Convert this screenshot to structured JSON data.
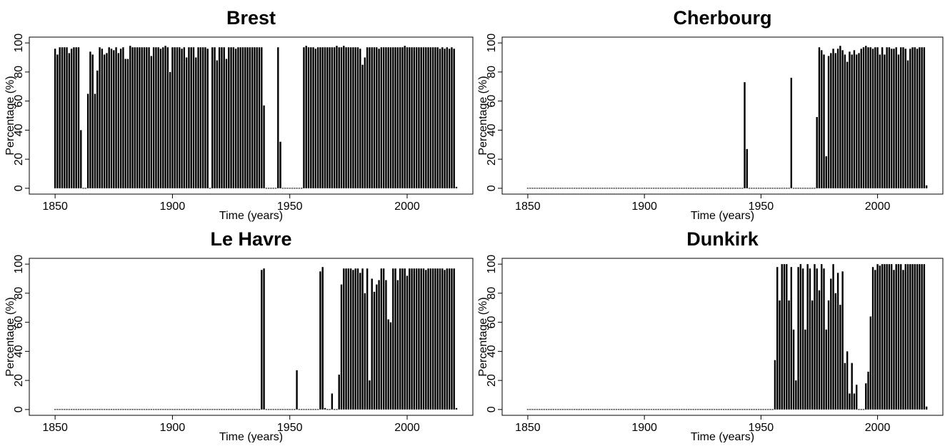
{
  "chart_data": [
    {
      "type": "bar",
      "title": "Brest",
      "xlabel": "Time (years)",
      "ylabel": "Percentage (%)",
      "color": "#000000",
      "xlim": [
        1839,
        2028
      ],
      "ylim": [
        -4,
        104
      ],
      "xticks": [
        1850,
        1900,
        1950,
        2000
      ],
      "yticks": [
        0,
        20,
        40,
        60,
        80,
        100
      ],
      "x": [
        1850,
        1851,
        1852,
        1853,
        1854,
        1855,
        1856,
        1857,
        1858,
        1859,
        1860,
        1861,
        1862,
        1863,
        1864,
        1865,
        1866,
        1867,
        1868,
        1869,
        1870,
        1871,
        1872,
        1873,
        1874,
        1875,
        1876,
        1877,
        1878,
        1879,
        1880,
        1881,
        1882,
        1883,
        1884,
        1885,
        1886,
        1887,
        1888,
        1889,
        1890,
        1891,
        1892,
        1893,
        1894,
        1895,
        1896,
        1897,
        1898,
        1899,
        1900,
        1901,
        1902,
        1903,
        1904,
        1905,
        1906,
        1907,
        1908,
        1909,
        1910,
        1911,
        1912,
        1913,
        1914,
        1915,
        1916,
        1917,
        1918,
        1919,
        1920,
        1921,
        1922,
        1923,
        1924,
        1925,
        1926,
        1927,
        1928,
        1929,
        1930,
        1931,
        1932,
        1933,
        1934,
        1935,
        1936,
        1937,
        1938,
        1939,
        1940,
        1941,
        1942,
        1943,
        1944,
        1945,
        1946,
        1947,
        1948,
        1949,
        1950,
        1951,
        1952,
        1953,
        1954,
        1955,
        1956,
        1957,
        1958,
        1959,
        1960,
        1961,
        1962,
        1963,
        1964,
        1965,
        1966,
        1967,
        1968,
        1969,
        1970,
        1971,
        1972,
        1973,
        1974,
        1975,
        1976,
        1977,
        1978,
        1979,
        1980,
        1981,
        1982,
        1983,
        1984,
        1985,
        1986,
        1987,
        1988,
        1989,
        1990,
        1991,
        1992,
        1993,
        1994,
        1995,
        1996,
        1997,
        1998,
        1999,
        2000,
        2001,
        2002,
        2003,
        2004,
        2005,
        2006,
        2007,
        2008,
        2009,
        2010,
        2011,
        2012,
        2013,
        2014,
        2015,
        2016,
        2017,
        2018,
        2019,
        2020,
        2021
      ],
      "values": [
        96,
        92,
        97,
        97,
        97,
        97,
        93,
        96,
        97,
        97,
        97,
        40,
        0,
        0,
        65,
        94,
        92,
        65,
        81,
        97,
        96,
        92,
        93,
        97,
        96,
        95,
        97,
        93,
        96,
        97,
        89,
        89,
        98,
        97,
        97,
        97,
        97,
        97,
        97,
        97,
        97,
        91,
        97,
        97,
        97,
        96,
        97,
        98,
        97,
        80,
        97,
        97,
        97,
        97,
        96,
        97,
        90,
        97,
        97,
        97,
        90,
        97,
        97,
        97,
        97,
        96,
        0,
        97,
        97,
        88,
        97,
        97,
        97,
        89,
        97,
        97,
        97,
        96,
        97,
        97,
        97,
        97,
        97,
        97,
        97,
        97,
        97,
        97,
        97,
        57,
        0,
        0,
        0,
        0,
        0,
        97,
        32,
        0,
        0,
        0,
        0,
        0,
        0,
        0,
        0,
        0,
        97,
        98,
        97,
        97,
        97,
        96,
        97,
        97,
        97,
        97,
        97,
        97,
        97,
        97,
        98,
        97,
        97,
        98,
        97,
        97,
        97,
        97,
        97,
        97,
        96,
        85,
        90,
        97,
        97,
        97,
        97,
        97,
        96,
        97,
        97,
        97,
        97,
        97,
        97,
        97,
        97,
        97,
        97,
        98,
        97,
        97,
        97,
        97,
        97,
        97,
        97,
        97,
        97,
        97,
        97,
        97,
        97,
        97,
        96,
        97,
        96,
        97,
        96,
        97,
        96,
        1
      ]
    },
    {
      "type": "bar",
      "title": "Cherbourg",
      "xlabel": "Time (years)",
      "ylabel": "Percentage (%)",
      "color": "#000000",
      "xlim": [
        1839,
        2028
      ],
      "ylim": [
        -4,
        104
      ],
      "xticks": [
        1850,
        1900,
        1950,
        2000
      ],
      "yticks": [
        0,
        20,
        40,
        60,
        80,
        100
      ],
      "x": [
        1850,
        1851,
        1852,
        1853,
        1854,
        1855,
        1856,
        1857,
        1858,
        1859,
        1860,
        1861,
        1862,
        1863,
        1864,
        1865,
        1866,
        1867,
        1868,
        1869,
        1870,
        1871,
        1872,
        1873,
        1874,
        1875,
        1876,
        1877,
        1878,
        1879,
        1880,
        1881,
        1882,
        1883,
        1884,
        1885,
        1886,
        1887,
        1888,
        1889,
        1890,
        1891,
        1892,
        1893,
        1894,
        1895,
        1896,
        1897,
        1898,
        1899,
        1900,
        1901,
        1902,
        1903,
        1904,
        1905,
        1906,
        1907,
        1908,
        1909,
        1910,
        1911,
        1912,
        1913,
        1914,
        1915,
        1916,
        1917,
        1918,
        1919,
        1920,
        1921,
        1922,
        1923,
        1924,
        1925,
        1926,
        1927,
        1928,
        1929,
        1930,
        1931,
        1932,
        1933,
        1934,
        1935,
        1936,
        1937,
        1938,
        1939,
        1940,
        1941,
        1942,
        1943,
        1944,
        1945,
        1946,
        1947,
        1948,
        1949,
        1950,
        1951,
        1952,
        1953,
        1954,
        1955,
        1956,
        1957,
        1958,
        1959,
        1960,
        1961,
        1962,
        1963,
        1964,
        1965,
        1966,
        1967,
        1968,
        1969,
        1970,
        1971,
        1972,
        1973,
        1974,
        1975,
        1976,
        1977,
        1978,
        1979,
        1980,
        1981,
        1982,
        1983,
        1984,
        1985,
        1986,
        1987,
        1988,
        1989,
        1990,
        1991,
        1992,
        1993,
        1994,
        1995,
        1996,
        1997,
        1998,
        1999,
        2000,
        2001,
        2002,
        2003,
        2004,
        2005,
        2006,
        2007,
        2008,
        2009,
        2010,
        2011,
        2012,
        2013,
        2014,
        2015,
        2016,
        2017,
        2018,
        2019,
        2020,
        2021
      ],
      "values": [
        0,
        0,
        0,
        0,
        0,
        0,
        0,
        0,
        0,
        0,
        0,
        0,
        0,
        0,
        0,
        0,
        0,
        0,
        0,
        0,
        0,
        0,
        0,
        0,
        0,
        0,
        0,
        0,
        0,
        0,
        0,
        0,
        0,
        0,
        0,
        0,
        0,
        0,
        0,
        0,
        0,
        0,
        0,
        0,
        0,
        0,
        0,
        0,
        0,
        0,
        0,
        0,
        0,
        0,
        0,
        0,
        0,
        0,
        0,
        0,
        0,
        0,
        0,
        0,
        0,
        0,
        0,
        0,
        0,
        0,
        0,
        0,
        0,
        0,
        0,
        0,
        0,
        0,
        0,
        0,
        0,
        0,
        0,
        0,
        0,
        0,
        0,
        0,
        0,
        0,
        0,
        0,
        0,
        73,
        27,
        0,
        0,
        0,
        0,
        0,
        0,
        0,
        0,
        0,
        0,
        0,
        0,
        0,
        0,
        0,
        0,
        0,
        0,
        76,
        0,
        0,
        0,
        0,
        0,
        0,
        0,
        0,
        0,
        0,
        49,
        97,
        95,
        92,
        22,
        91,
        93,
        96,
        93,
        96,
        98,
        95,
        92,
        87,
        94,
        92,
        95,
        92,
        93,
        96,
        97,
        98,
        97,
        97,
        96,
        97,
        97,
        92,
        97,
        92,
        97,
        97,
        96,
        96,
        97,
        92,
        97,
        97,
        96,
        88,
        96,
        97,
        97,
        96,
        97,
        97,
        97,
        2
      ]
    },
    {
      "type": "bar",
      "title": "Le Havre",
      "xlabel": "Time (years)",
      "ylabel": "Percentage (%)",
      "color": "#000000",
      "xlim": [
        1839,
        2028
      ],
      "ylim": [
        -4,
        104
      ],
      "xticks": [
        1850,
        1900,
        1950,
        2000
      ],
      "yticks": [
        0,
        20,
        40,
        60,
        80,
        100
      ],
      "x": [
        1850,
        1851,
        1852,
        1853,
        1854,
        1855,
        1856,
        1857,
        1858,
        1859,
        1860,
        1861,
        1862,
        1863,
        1864,
        1865,
        1866,
        1867,
        1868,
        1869,
        1870,
        1871,
        1872,
        1873,
        1874,
        1875,
        1876,
        1877,
        1878,
        1879,
        1880,
        1881,
        1882,
        1883,
        1884,
        1885,
        1886,
        1887,
        1888,
        1889,
        1890,
        1891,
        1892,
        1893,
        1894,
        1895,
        1896,
        1897,
        1898,
        1899,
        1900,
        1901,
        1902,
        1903,
        1904,
        1905,
        1906,
        1907,
        1908,
        1909,
        1910,
        1911,
        1912,
        1913,
        1914,
        1915,
        1916,
        1917,
        1918,
        1919,
        1920,
        1921,
        1922,
        1923,
        1924,
        1925,
        1926,
        1927,
        1928,
        1929,
        1930,
        1931,
        1932,
        1933,
        1934,
        1935,
        1936,
        1937,
        1938,
        1939,
        1940,
        1941,
        1942,
        1943,
        1944,
        1945,
        1946,
        1947,
        1948,
        1949,
        1950,
        1951,
        1952,
        1953,
        1954,
        1955,
        1956,
        1957,
        1958,
        1959,
        1960,
        1961,
        1962,
        1963,
        1964,
        1965,
        1966,
        1967,
        1968,
        1969,
        1970,
        1971,
        1972,
        1973,
        1974,
        1975,
        1976,
        1977,
        1978,
        1979,
        1980,
        1981,
        1982,
        1983,
        1984,
        1985,
        1986,
        1987,
        1988,
        1989,
        1990,
        1991,
        1992,
        1993,
        1994,
        1995,
        1996,
        1997,
        1998,
        1999,
        2000,
        2001,
        2002,
        2003,
        2004,
        2005,
        2006,
        2007,
        2008,
        2009,
        2010,
        2011,
        2012,
        2013,
        2014,
        2015,
        2016,
        2017,
        2018,
        2019,
        2020,
        2021
      ],
      "values": [
        0,
        0,
        0,
        0,
        0,
        0,
        0,
        0,
        0,
        0,
        0,
        0,
        0,
        0,
        0,
        0,
        0,
        0,
        0,
        0,
        0,
        0,
        0,
        0,
        0,
        0,
        0,
        0,
        0,
        0,
        0,
        0,
        0,
        0,
        0,
        0,
        0,
        0,
        0,
        0,
        0,
        0,
        0,
        0,
        0,
        0,
        0,
        0,
        0,
        0,
        0,
        0,
        0,
        0,
        0,
        0,
        0,
        0,
        0,
        0,
        0,
        0,
        0,
        0,
        0,
        0,
        0,
        0,
        0,
        0,
        0,
        0,
        0,
        0,
        0,
        0,
        0,
        0,
        0,
        0,
        0,
        0,
        0,
        0,
        0,
        0,
        0,
        0,
        96,
        97,
        0,
        0,
        0,
        0,
        0,
        0,
        0,
        0,
        0,
        0,
        0,
        0,
        0,
        27,
        0,
        0,
        0,
        0,
        0,
        0,
        0,
        0,
        0,
        95,
        98,
        1,
        0,
        0,
        11,
        0,
        0,
        24,
        86,
        97,
        97,
        97,
        97,
        96,
        97,
        97,
        94,
        97,
        80,
        97,
        20,
        90,
        81,
        86,
        89,
        97,
        97,
        89,
        62,
        60,
        97,
        97,
        89,
        97,
        97,
        97,
        92,
        97,
        97,
        97,
        97,
        97,
        97,
        97,
        96,
        97,
        97,
        97,
        97,
        97,
        97,
        97,
        96,
        97,
        97,
        97,
        97,
        1
      ]
    },
    {
      "type": "bar",
      "title": "Dunkirk",
      "xlabel": "Time (years)",
      "ylabel": "Percentage (%)",
      "color": "#000000",
      "xlim": [
        1839,
        2028
      ],
      "ylim": [
        -4,
        104
      ],
      "xticks": [
        1850,
        1900,
        1950,
        2000
      ],
      "yticks": [
        0,
        20,
        40,
        60,
        80,
        100
      ],
      "x": [
        1850,
        1851,
        1852,
        1853,
        1854,
        1855,
        1856,
        1857,
        1858,
        1859,
        1860,
        1861,
        1862,
        1863,
        1864,
        1865,
        1866,
        1867,
        1868,
        1869,
        1870,
        1871,
        1872,
        1873,
        1874,
        1875,
        1876,
        1877,
        1878,
        1879,
        1880,
        1881,
        1882,
        1883,
        1884,
        1885,
        1886,
        1887,
        1888,
        1889,
        1890,
        1891,
        1892,
        1893,
        1894,
        1895,
        1896,
        1897,
        1898,
        1899,
        1900,
        1901,
        1902,
        1903,
        1904,
        1905,
        1906,
        1907,
        1908,
        1909,
        1910,
        1911,
        1912,
        1913,
        1914,
        1915,
        1916,
        1917,
        1918,
        1919,
        1920,
        1921,
        1922,
        1923,
        1924,
        1925,
        1926,
        1927,
        1928,
        1929,
        1930,
        1931,
        1932,
        1933,
        1934,
        1935,
        1936,
        1937,
        1938,
        1939,
        1940,
        1941,
        1942,
        1943,
        1944,
        1945,
        1946,
        1947,
        1948,
        1949,
        1950,
        1951,
        1952,
        1953,
        1954,
        1955,
        1956,
        1957,
        1958,
        1959,
        1960,
        1961,
        1962,
        1963,
        1964,
        1965,
        1966,
        1967,
        1968,
        1969,
        1970,
        1971,
        1972,
        1973,
        1974,
        1975,
        1976,
        1977,
        1978,
        1979,
        1980,
        1981,
        1982,
        1983,
        1984,
        1985,
        1986,
        1987,
        1988,
        1989,
        1990,
        1991,
        1992,
        1993,
        1994,
        1995,
        1996,
        1997,
        1998,
        1999,
        2000,
        2001,
        2002,
        2003,
        2004,
        2005,
        2006,
        2007,
        2008,
        2009,
        2010,
        2011,
        2012,
        2013,
        2014,
        2015,
        2016,
        2017,
        2018,
        2019,
        2020,
        2021
      ],
      "values": [
        0,
        0,
        0,
        0,
        0,
        0,
        0,
        0,
        0,
        0,
        0,
        0,
        0,
        0,
        0,
        0,
        0,
        0,
        0,
        0,
        0,
        0,
        0,
        0,
        0,
        0,
        0,
        0,
        0,
        0,
        0,
        0,
        0,
        0,
        0,
        0,
        0,
        0,
        0,
        0,
        0,
        0,
        0,
        0,
        0,
        0,
        0,
        0,
        0,
        0,
        0,
        0,
        0,
        0,
        0,
        0,
        0,
        0,
        0,
        0,
        0,
        0,
        0,
        0,
        0,
        0,
        0,
        0,
        0,
        0,
        0,
        0,
        0,
        0,
        0,
        0,
        0,
        0,
        0,
        0,
        0,
        0,
        0,
        0,
        0,
        0,
        0,
        0,
        0,
        0,
        0,
        0,
        0,
        0,
        0,
        0,
        0,
        0,
        0,
        0,
        0,
        0,
        0,
        0,
        0,
        0,
        34,
        98,
        75,
        100,
        100,
        100,
        75,
        98,
        55,
        20,
        98,
        100,
        97,
        55,
        100,
        97,
        75,
        100,
        97,
        82,
        100,
        97,
        55,
        75,
        90,
        100,
        80,
        94,
        72,
        95,
        32,
        40,
        11,
        32,
        11,
        17,
        0,
        0,
        0,
        18,
        26,
        64,
        98,
        96,
        100,
        99,
        100,
        100,
        100,
        100,
        100,
        96,
        100,
        100,
        100,
        96,
        100,
        100,
        100,
        100,
        100,
        100,
        100,
        100,
        100,
        2
      ]
    }
  ]
}
